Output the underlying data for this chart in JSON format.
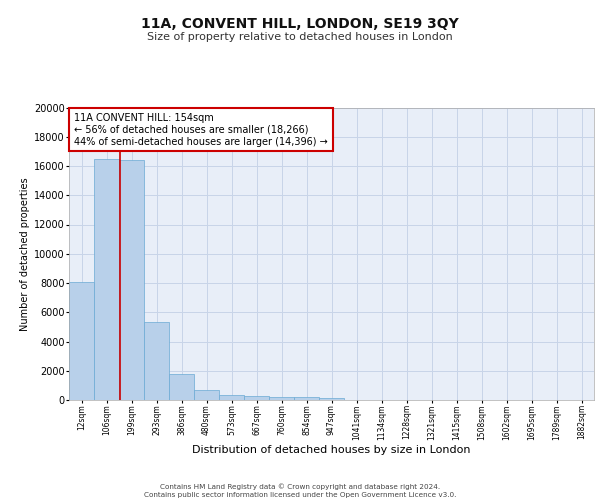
{
  "title": "11A, CONVENT HILL, LONDON, SE19 3QY",
  "subtitle": "Size of property relative to detached houses in London",
  "xlabel": "Distribution of detached houses by size in London",
  "ylabel": "Number of detached properties",
  "categories": [
    "12sqm",
    "106sqm",
    "199sqm",
    "293sqm",
    "386sqm",
    "480sqm",
    "573sqm",
    "667sqm",
    "760sqm",
    "854sqm",
    "947sqm",
    "1041sqm",
    "1134sqm",
    "1228sqm",
    "1321sqm",
    "1415sqm",
    "1508sqm",
    "1602sqm",
    "1695sqm",
    "1789sqm",
    "1882sqm"
  ],
  "bar_heights": [
    8100,
    16500,
    16400,
    5300,
    1750,
    650,
    350,
    275,
    220,
    185,
    150,
    0,
    0,
    0,
    0,
    0,
    0,
    0,
    0,
    0,
    0
  ],
  "bar_color": "#b8d0ea",
  "bar_edge_color": "#6aaad4",
  "grid_color": "#c8d4e8",
  "background_color": "#e8eef8",
  "red_line_x": 1.55,
  "annotation_text": "11A CONVENT HILL: 154sqm\n← 56% of detached houses are smaller (18,266)\n44% of semi-detached houses are larger (14,396) →",
  "annotation_box_color": "#ffffff",
  "annotation_border_color": "#cc0000",
  "ylim": [
    0,
    20000
  ],
  "yticks": [
    0,
    2000,
    4000,
    6000,
    8000,
    10000,
    12000,
    14000,
    16000,
    18000,
    20000
  ],
  "footer_line1": "Contains HM Land Registry data © Crown copyright and database right 2024.",
  "footer_line2": "Contains public sector information licensed under the Open Government Licence v3.0."
}
